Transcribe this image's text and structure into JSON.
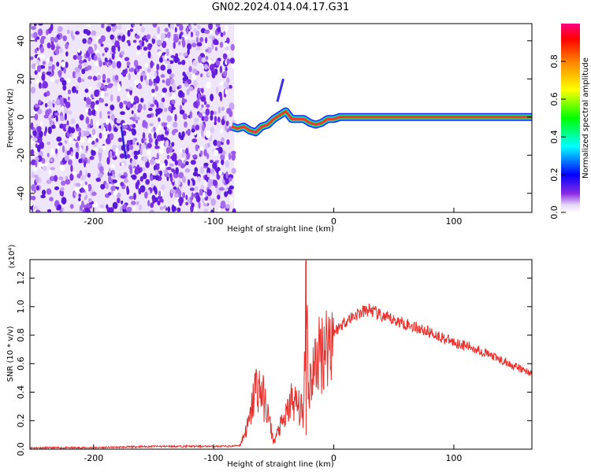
{
  "title": "GN02.2024.014.04.17.G31",
  "chart_data": [
    {
      "type": "heatmap",
      "xlabel": "Height of straight line (km)",
      "ylabel": "Frequency (Hz)",
      "xlim": [
        -253,
        165
      ],
      "ylim": [
        -50,
        49
      ],
      "xticks": [
        -200,
        -100,
        0,
        100
      ],
      "yticks": [
        -40,
        -20,
        0,
        20,
        40
      ],
      "colorbar": {
        "label": "Normalized spectral amplitude",
        "range": [
          0,
          1
        ],
        "ticks": [
          "0.0",
          "0.2",
          "0.4",
          "0.6",
          "0.8"
        ],
        "position": "right"
      },
      "noise_region": {
        "x": [
          -253,
          -83
        ]
      },
      "signal_track": [
        {
          "x": -85,
          "y": -5
        },
        {
          "x": -80,
          "y": -6
        },
        {
          "x": -75,
          "y": -5
        },
        {
          "x": -70,
          "y": -7
        },
        {
          "x": -65,
          "y": -8
        },
        {
          "x": -60,
          "y": -5
        },
        {
          "x": -55,
          "y": -4
        },
        {
          "x": -50,
          "y": -1
        },
        {
          "x": -45,
          "y": 1
        },
        {
          "x": -40,
          "y": 3
        },
        {
          "x": -35,
          "y": -1
        },
        {
          "x": -30,
          "y": -1
        },
        {
          "x": -25,
          "y": -1
        },
        {
          "x": -20,
          "y": -3
        },
        {
          "x": -15,
          "y": -4
        },
        {
          "x": -10,
          "y": -3
        },
        {
          "x": -5,
          "y": -1
        },
        {
          "x": 0,
          "y": -1
        },
        {
          "x": 5,
          "y": 0
        },
        {
          "x": 165,
          "y": 0
        }
      ]
    },
    {
      "type": "line",
      "xlabel": "Height of straight line (km)",
      "ylabel": "SNR (10 * v/v)",
      "yscale_label": "(x10⁴)",
      "xlim": [
        -253,
        165
      ],
      "ylim": [
        0,
        1.33
      ],
      "xticks": [
        -200,
        -100,
        0,
        100
      ],
      "yticks": [
        "0.0",
        "0.2",
        "0.4",
        "0.6",
        "0.8",
        "1.0",
        "1.2"
      ],
      "color": "#e8302c",
      "series": [
        {
          "x": [
            -253,
            -200,
            -150,
            -100,
            -85,
            -78,
            -70,
            -65,
            -60,
            -55,
            -50,
            -45,
            -40,
            -35,
            -30,
            -25,
            -23,
            -21,
            -19,
            -15,
            -10,
            -5,
            0,
            10,
            20,
            30,
            40,
            60,
            80,
            100,
            120,
            140,
            165
          ],
          "y": [
            0.01,
            0.01,
            0.02,
            0.02,
            0.02,
            0.03,
            0.2,
            0.45,
            0.4,
            0.25,
            0.05,
            0.15,
            0.22,
            0.35,
            0.3,
            0.25,
            1.33,
            0.4,
            0.5,
            0.6,
            0.7,
            0.75,
            0.82,
            0.9,
            0.95,
            0.98,
            0.93,
            0.88,
            0.82,
            0.75,
            0.7,
            0.62,
            0.53
          ]
        }
      ]
    }
  ]
}
